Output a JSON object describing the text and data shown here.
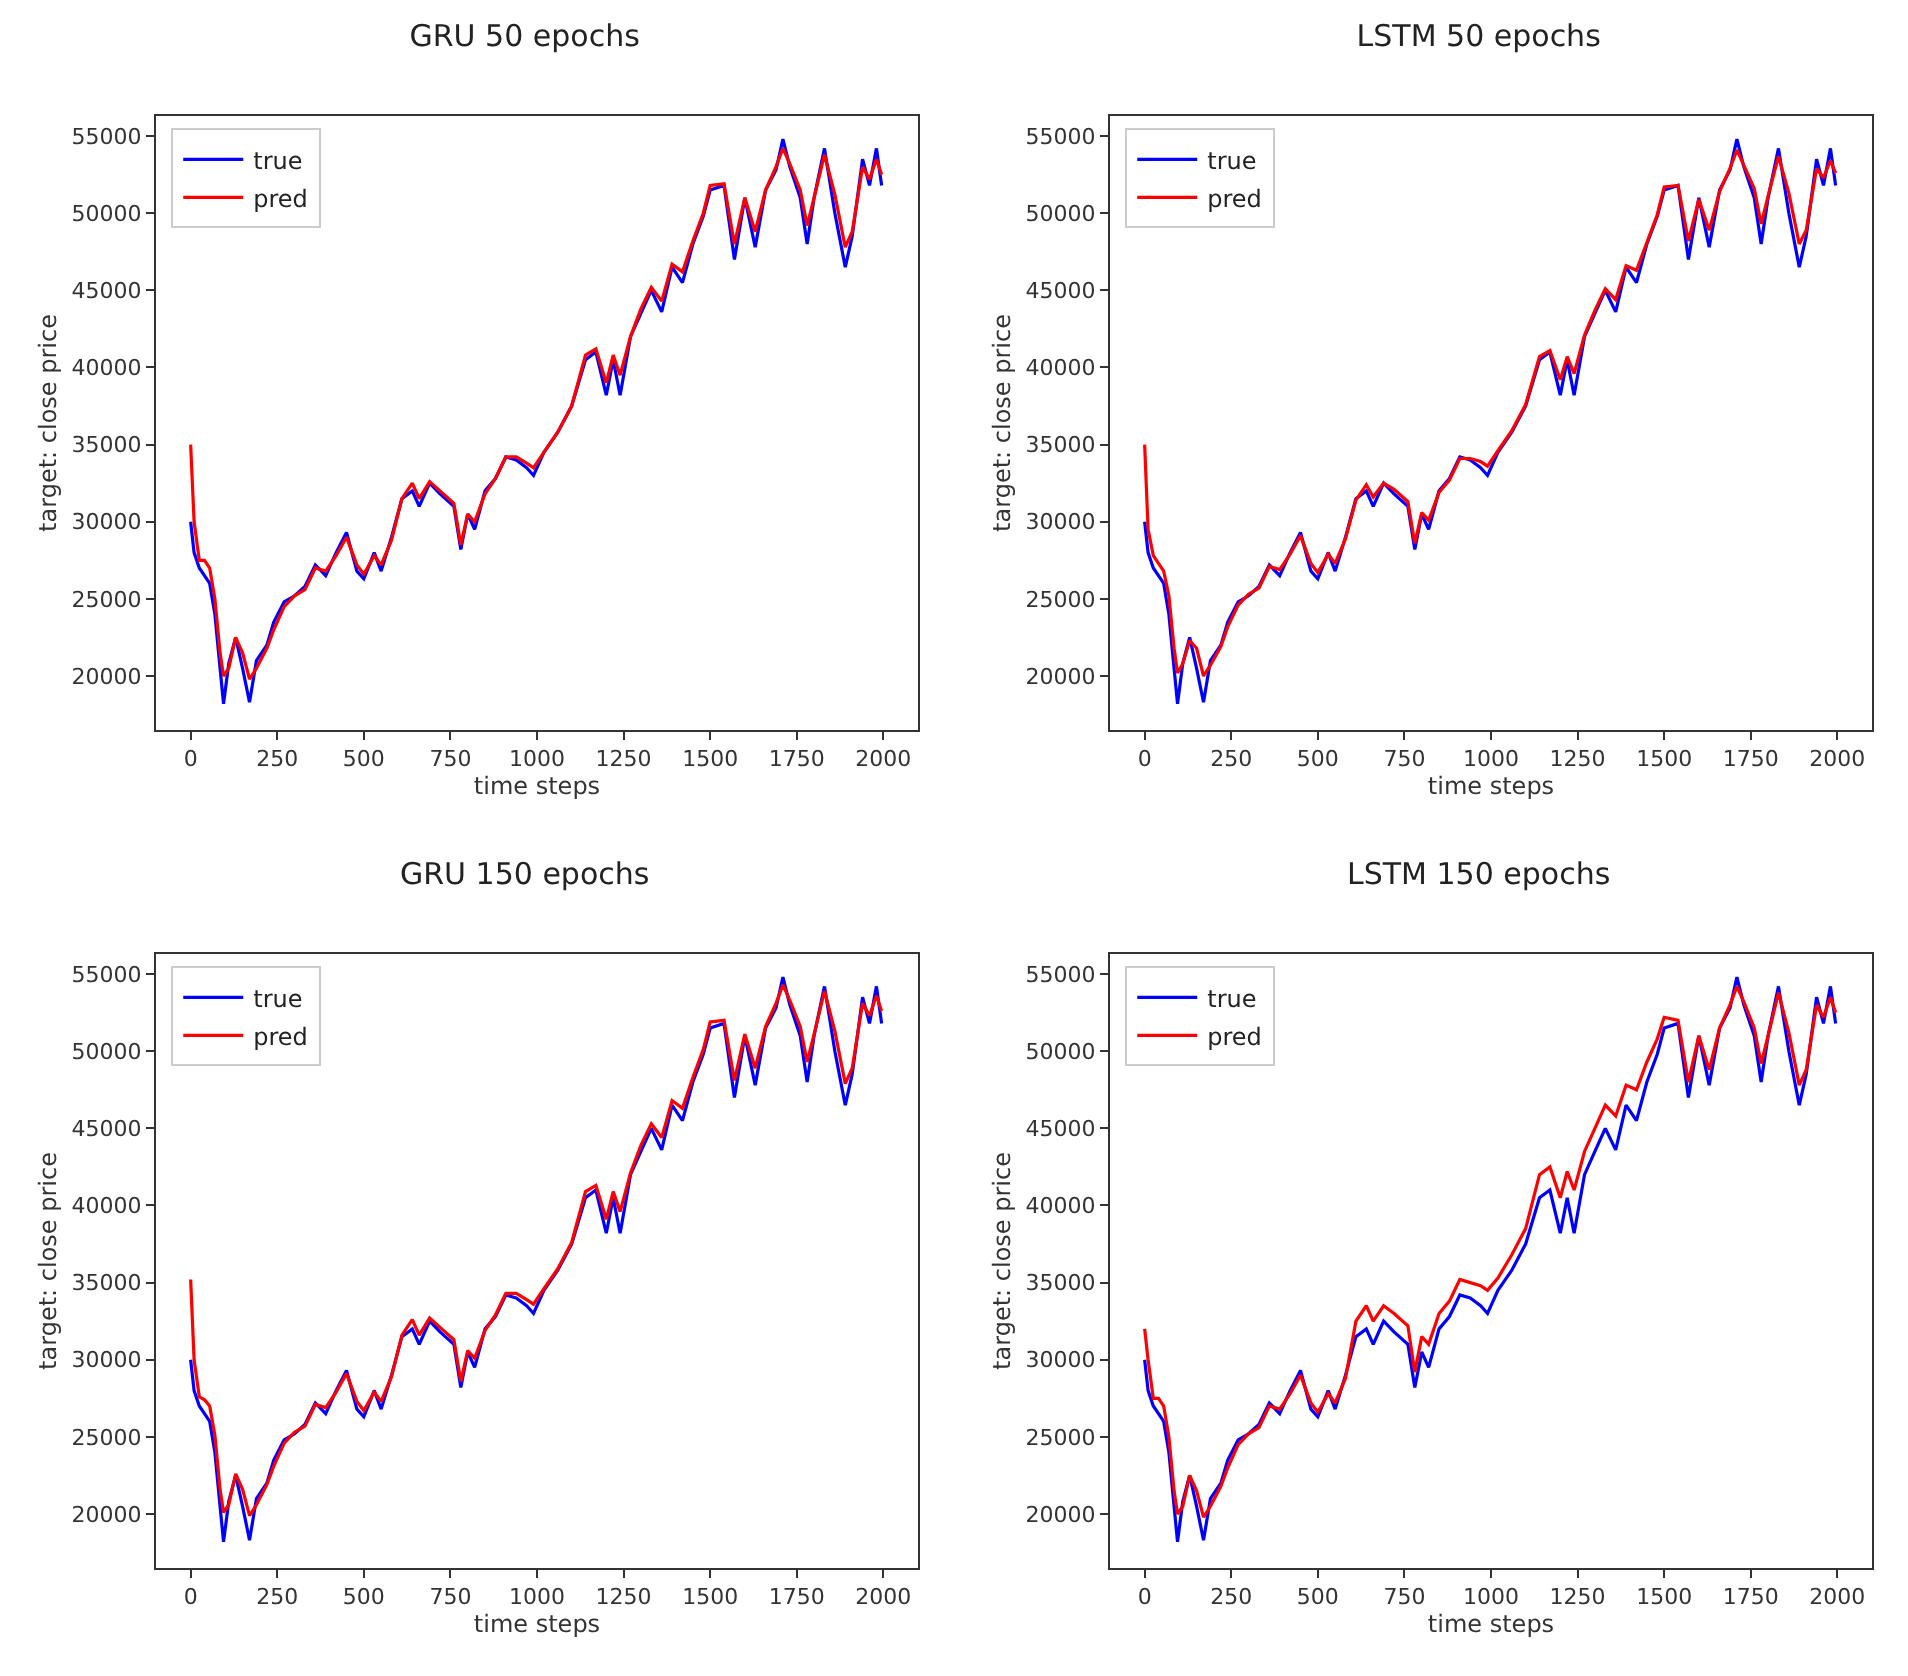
{
  "chart_data": [
    {
      "type": "line",
      "title": "GRU 50 epochs",
      "xlabel": "time steps",
      "ylabel": "target: close price",
      "legend": "top left",
      "grid": false,
      "marker": "none",
      "line_style": "solid",
      "xlim": [
        -100,
        2100
      ],
      "ylim": [
        16500,
        56300
      ],
      "xticks": [
        0,
        250,
        500,
        750,
        1000,
        1250,
        1500,
        1750,
        2000
      ],
      "yticks": [
        20000,
        25000,
        30000,
        35000,
        40000,
        45000,
        50000,
        55000
      ],
      "x": [
        0,
        10,
        25,
        40,
        55,
        70,
        85,
        95,
        110,
        130,
        150,
        170,
        190,
        220,
        240,
        270,
        300,
        330,
        360,
        390,
        420,
        450,
        480,
        500,
        530,
        550,
        580,
        610,
        640,
        660,
        690,
        720,
        760,
        780,
        800,
        820,
        850,
        880,
        910,
        940,
        970,
        990,
        1020,
        1060,
        1100,
        1140,
        1170,
        1200,
        1220,
        1240,
        1270,
        1300,
        1330,
        1360,
        1390,
        1420,
        1450,
        1480,
        1500,
        1540,
        1570,
        1600,
        1630,
        1660,
        1690,
        1710,
        1730,
        1760,
        1780,
        1800,
        1830,
        1860,
        1890,
        1910,
        1940,
        1960,
        1980,
        1995
      ],
      "series": [
        {
          "name": "true",
          "color": "#0000ff",
          "values": [
            30000,
            28000,
            27000,
            26500,
            26000,
            24000,
            20500,
            18200,
            20800,
            22500,
            20500,
            18300,
            21000,
            22000,
            23500,
            24800,
            25200,
            25800,
            27200,
            26500,
            28000,
            29300,
            26800,
            26300,
            28000,
            26800,
            29000,
            31500,
            32000,
            31000,
            32500,
            31800,
            31000,
            28200,
            30500,
            29500,
            32000,
            32800,
            34200,
            34000,
            33500,
            33000,
            34500,
            35800,
            37500,
            40500,
            41000,
            38200,
            40500,
            38200,
            42000,
            43500,
            45000,
            43600,
            46500,
            45500,
            48000,
            49800,
            51500,
            51800,
            47000,
            51000,
            47800,
            51500,
            52800,
            54800,
            53000,
            51000,
            48000,
            51000,
            54200,
            50000,
            46500,
            48500,
            53500,
            51800,
            54200,
            51800
          ]
        },
        {
          "name": "pred",
          "color": "#ff0000",
          "values": [
            35000,
            30000,
            27500,
            27500,
            27000,
            25000,
            21500,
            20000,
            20500,
            22500,
            21500,
            19800,
            20500,
            21800,
            23000,
            24500,
            25200,
            25600,
            27000,
            26800,
            27800,
            29000,
            27200,
            26600,
            27800,
            27200,
            28800,
            31500,
            32500,
            31500,
            32600,
            32000,
            31200,
            28500,
            30500,
            30000,
            31800,
            32800,
            34200,
            34200,
            33800,
            33500,
            34500,
            35800,
            37500,
            40800,
            41200,
            39000,
            40800,
            39500,
            42000,
            43800,
            45200,
            44300,
            46700,
            46200,
            48200,
            50000,
            51800,
            51900,
            48000,
            51000,
            48800,
            51500,
            53000,
            54200,
            53200,
            51500,
            49200,
            51000,
            53800,
            51200,
            47800,
            48800,
            53000,
            52200,
            53500,
            52500
          ]
        }
      ]
    },
    {
      "type": "line",
      "title": "LSTM 50 epochs",
      "xlabel": "time steps",
      "ylabel": "target: close price",
      "legend": "top left",
      "grid": false,
      "marker": "none",
      "line_style": "solid",
      "xlim": [
        -100,
        2100
      ],
      "ylim": [
        16500,
        56300
      ],
      "xticks": [
        0,
        250,
        500,
        750,
        1000,
        1250,
        1500,
        1750,
        2000
      ],
      "yticks": [
        20000,
        25000,
        30000,
        35000,
        40000,
        45000,
        50000,
        55000
      ],
      "x": [
        0,
        10,
        25,
        40,
        55,
        70,
        85,
        95,
        110,
        130,
        150,
        170,
        190,
        220,
        240,
        270,
        300,
        330,
        360,
        390,
        420,
        450,
        480,
        500,
        530,
        550,
        580,
        610,
        640,
        660,
        690,
        720,
        760,
        780,
        800,
        820,
        850,
        880,
        910,
        940,
        970,
        990,
        1020,
        1060,
        1100,
        1140,
        1170,
        1200,
        1220,
        1240,
        1270,
        1300,
        1330,
        1360,
        1390,
        1420,
        1450,
        1480,
        1500,
        1540,
        1570,
        1600,
        1630,
        1660,
        1690,
        1710,
        1730,
        1760,
        1780,
        1800,
        1830,
        1860,
        1890,
        1910,
        1940,
        1960,
        1980,
        1995
      ],
      "series": [
        {
          "name": "true",
          "color": "#0000ff",
          "values": [
            30000,
            28000,
            27000,
            26500,
            26000,
            24000,
            20500,
            18200,
            20800,
            22500,
            20500,
            18300,
            21000,
            22000,
            23500,
            24800,
            25200,
            25800,
            27200,
            26500,
            28000,
            29300,
            26800,
            26300,
            28000,
            26800,
            29000,
            31500,
            32000,
            31000,
            32500,
            31800,
            31000,
            28200,
            30500,
            29500,
            32000,
            32800,
            34200,
            34000,
            33500,
            33000,
            34500,
            35800,
            37500,
            40500,
            41000,
            38200,
            40500,
            38200,
            42000,
            43500,
            45000,
            43600,
            46500,
            45500,
            48000,
            49800,
            51500,
            51800,
            47000,
            51000,
            47800,
            51500,
            52800,
            54800,
            53000,
            51000,
            48000,
            51000,
            54200,
            50000,
            46500,
            48500,
            53500,
            51800,
            54200,
            51800
          ]
        },
        {
          "name": "pred",
          "color": "#ff0000",
          "values": [
            35000,
            29500,
            27800,
            27300,
            26800,
            25200,
            21800,
            20200,
            20800,
            22300,
            21800,
            20000,
            20700,
            21900,
            23200,
            24600,
            25300,
            25700,
            27100,
            26900,
            27900,
            29100,
            27300,
            26700,
            27900,
            27300,
            28900,
            31400,
            32400,
            31600,
            32500,
            32100,
            31300,
            28600,
            30600,
            30100,
            31900,
            32700,
            34100,
            34100,
            33900,
            33600,
            34600,
            35900,
            37600,
            40700,
            41100,
            39200,
            40700,
            39600,
            42100,
            43700,
            45100,
            44400,
            46600,
            46300,
            48100,
            49900,
            51700,
            51800,
            48200,
            50900,
            48900,
            51400,
            52900,
            54100,
            53100,
            51600,
            49300,
            51100,
            53700,
            51300,
            48000,
            48900,
            52900,
            52300,
            53400,
            52600
          ]
        }
      ]
    },
    {
      "type": "line",
      "title": "GRU 150 epochs",
      "xlabel": "time steps",
      "ylabel": "target: close price",
      "legend": "top left",
      "grid": false,
      "marker": "none",
      "line_style": "solid",
      "xlim": [
        -100,
        2100
      ],
      "ylim": [
        16500,
        56300
      ],
      "xticks": [
        0,
        250,
        500,
        750,
        1000,
        1250,
        1500,
        1750,
        2000
      ],
      "yticks": [
        20000,
        25000,
        30000,
        35000,
        40000,
        45000,
        50000,
        55000
      ],
      "x": [
        0,
        10,
        25,
        40,
        55,
        70,
        85,
        95,
        110,
        130,
        150,
        170,
        190,
        220,
        240,
        270,
        300,
        330,
        360,
        390,
        420,
        450,
        480,
        500,
        530,
        550,
        580,
        610,
        640,
        660,
        690,
        720,
        760,
        780,
        800,
        820,
        850,
        880,
        910,
        940,
        970,
        990,
        1020,
        1060,
        1100,
        1140,
        1170,
        1200,
        1220,
        1240,
        1270,
        1300,
        1330,
        1360,
        1390,
        1420,
        1450,
        1480,
        1500,
        1540,
        1570,
        1600,
        1630,
        1660,
        1690,
        1710,
        1730,
        1760,
        1780,
        1800,
        1830,
        1860,
        1890,
        1910,
        1940,
        1960,
        1980,
        1995
      ],
      "series": [
        {
          "name": "true",
          "color": "#0000ff",
          "values": [
            30000,
            28000,
            27000,
            26500,
            26000,
            24000,
            20500,
            18200,
            20800,
            22500,
            20500,
            18300,
            21000,
            22000,
            23500,
            24800,
            25200,
            25800,
            27200,
            26500,
            28000,
            29300,
            26800,
            26300,
            28000,
            26800,
            29000,
            31500,
            32000,
            31000,
            32500,
            31800,
            31000,
            28200,
            30500,
            29500,
            32000,
            32800,
            34200,
            34000,
            33500,
            33000,
            34500,
            35800,
            37500,
            40500,
            41000,
            38200,
            40500,
            38200,
            42000,
            43500,
            45000,
            43600,
            46500,
            45500,
            48000,
            49800,
            51500,
            51800,
            47000,
            51000,
            47800,
            51500,
            52800,
            54800,
            53000,
            51000,
            48000,
            51000,
            54200,
            50000,
            46500,
            48500,
            53500,
            51800,
            54200,
            51800
          ]
        },
        {
          "name": "pred",
          "color": "#ff0000",
          "values": [
            35200,
            30000,
            27600,
            27400,
            27000,
            25100,
            21600,
            20100,
            20600,
            22600,
            21600,
            19900,
            20600,
            21900,
            23100,
            24600,
            25300,
            25700,
            27100,
            26900,
            27900,
            29100,
            27300,
            26700,
            27900,
            27300,
            28900,
            31600,
            32600,
            31600,
            32700,
            32100,
            31300,
            28600,
            30600,
            30100,
            31900,
            32900,
            34300,
            34300,
            33900,
            33600,
            34600,
            35900,
            37600,
            40900,
            41300,
            39100,
            40900,
            39600,
            42100,
            43900,
            45300,
            44400,
            46800,
            46300,
            48300,
            50100,
            51900,
            52000,
            48100,
            51100,
            48900,
            51600,
            53100,
            54300,
            53300,
            51600,
            49300,
            51100,
            53900,
            51300,
            47900,
            48900,
            53100,
            52300,
            53600,
            52600
          ]
        }
      ]
    },
    {
      "type": "line",
      "title": "LSTM 150 epochs",
      "xlabel": "time steps",
      "ylabel": "target: close price",
      "legend": "top left",
      "grid": false,
      "marker": "none",
      "line_style": "solid",
      "xlim": [
        -100,
        2100
      ],
      "ylim": [
        16500,
        56300
      ],
      "xticks": [
        0,
        250,
        500,
        750,
        1000,
        1250,
        1500,
        1750,
        2000
      ],
      "yticks": [
        20000,
        25000,
        30000,
        35000,
        40000,
        45000,
        50000,
        55000
      ],
      "x": [
        0,
        10,
        25,
        40,
        55,
        70,
        85,
        95,
        110,
        130,
        150,
        170,
        190,
        220,
        240,
        270,
        300,
        330,
        360,
        390,
        420,
        450,
        480,
        500,
        530,
        550,
        580,
        610,
        640,
        660,
        690,
        720,
        760,
        780,
        800,
        820,
        850,
        880,
        910,
        940,
        970,
        990,
        1020,
        1060,
        1100,
        1140,
        1170,
        1200,
        1220,
        1240,
        1270,
        1300,
        1330,
        1360,
        1390,
        1420,
        1450,
        1480,
        1500,
        1540,
        1570,
        1600,
        1630,
        1660,
        1690,
        1710,
        1730,
        1760,
        1780,
        1800,
        1830,
        1860,
        1890,
        1910,
        1940,
        1960,
        1980,
        1995
      ],
      "series": [
        {
          "name": "true",
          "color": "#0000ff",
          "values": [
            30000,
            28000,
            27000,
            26500,
            26000,
            24000,
            20500,
            18200,
            20800,
            22500,
            20500,
            18300,
            21000,
            22000,
            23500,
            24800,
            25200,
            25800,
            27200,
            26500,
            28000,
            29300,
            26800,
            26300,
            28000,
            26800,
            29000,
            31500,
            32000,
            31000,
            32500,
            31800,
            31000,
            28200,
            30500,
            29500,
            32000,
            32800,
            34200,
            34000,
            33500,
            33000,
            34500,
            35800,
            37500,
            40500,
            41000,
            38200,
            40500,
            38200,
            42000,
            43500,
            45000,
            43600,
            46500,
            45500,
            48000,
            49800,
            51500,
            51800,
            47000,
            51000,
            47800,
            51500,
            52800,
            54800,
            53000,
            51000,
            48000,
            51000,
            54200,
            50000,
            46500,
            48500,
            53500,
            51800,
            54200,
            51800
          ]
        },
        {
          "name": "pred",
          "color": "#ff0000",
          "values": [
            32000,
            30000,
            27500,
            27500,
            27000,
            25000,
            21500,
            20000,
            20500,
            22500,
            21500,
            19800,
            20500,
            21800,
            23000,
            24500,
            25200,
            25600,
            27000,
            26800,
            27800,
            29000,
            27200,
            26600,
            27800,
            27200,
            28800,
            32500,
            33500,
            32500,
            33500,
            33000,
            32200,
            29200,
            31500,
            31000,
            33000,
            33800,
            35200,
            35000,
            34800,
            34500,
            35300,
            36800,
            38500,
            42000,
            42500,
            40500,
            42200,
            41000,
            43500,
            45000,
            46500,
            45800,
            47800,
            47500,
            49300,
            50800,
            52200,
            52000,
            48000,
            51000,
            48800,
            51500,
            53000,
            54200,
            53200,
            51500,
            49200,
            51000,
            53800,
            51200,
            47800,
            48800,
            53000,
            52200,
            53500,
            52500
          ]
        }
      ]
    }
  ]
}
